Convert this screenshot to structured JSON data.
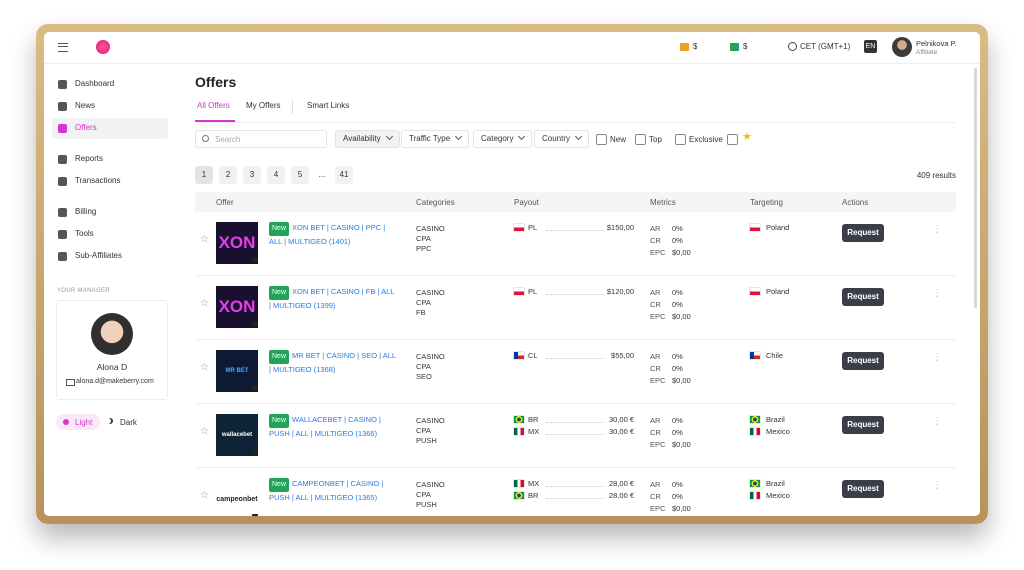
{
  "topbar": {
    "balances": [
      "$",
      "$"
    ],
    "timezone": "CET (GMT+1)",
    "language": "EN",
    "user_name": "Pelnikova P.",
    "user_role": "Affiliate"
  },
  "sidebar": {
    "menu": [
      "Dashboard",
      "News",
      "Offers",
      "Reports",
      "Transactions",
      "Billing",
      "Tools",
      "Sub-Affiliates"
    ],
    "manager_heading": "YOUR MANAGER",
    "manager_name": "Alona D",
    "manager_email": "alona.d@makeberry.com",
    "themes": [
      "Light",
      "Dark"
    ]
  },
  "main": {
    "title": "Offers",
    "tabs": [
      "All Offers",
      "My Offers",
      "Smart Links"
    ],
    "search_placeholder": "Search",
    "filters": [
      "Availability",
      "Traffic Type",
      "Category",
      "Country"
    ],
    "checkboxes": [
      "New",
      "Top",
      "Exclusive"
    ],
    "pages": [
      "1",
      "2",
      "3",
      "4",
      "5",
      "...",
      "41"
    ],
    "results": "409 results",
    "table": {
      "headers": [
        "Offer",
        "Categories",
        "Payout",
        "Metrics",
        "Targeting",
        "Actions"
      ],
      "rows": [
        {
          "logo": "XON",
          "badge": "New",
          "name": "XON BET | CASINO | PPC | ALL | MULTIGEO (1401)",
          "categories": [
            "CASINO",
            "CPA",
            "PPC"
          ],
          "payout": [
            {
              "country": "PL",
              "amount": "$150,00"
            }
          ],
          "metrics": [
            [
              "AR",
              "0%"
            ],
            [
              "CR",
              "0%"
            ],
            [
              "EPC",
              "$0,00"
            ]
          ],
          "targeting": [
            "Poland"
          ],
          "action": "Request"
        },
        {
          "logo": "XON",
          "badge": "New",
          "name": "XON BET | CASINO | FB | ALL | MULTIGEO (1399)",
          "categories": [
            "CASINO",
            "CPA",
            "FB"
          ],
          "payout": [
            {
              "country": "PL",
              "amount": "$120,00"
            }
          ],
          "metrics": [
            [
              "AR",
              "0%"
            ],
            [
              "CR",
              "0%"
            ],
            [
              "EPC",
              "$0,00"
            ]
          ],
          "targeting": [
            "Poland"
          ],
          "action": "Request"
        },
        {
          "logo": "MR BET",
          "badge": "New",
          "name": "MR BET | CASINO | SEO | ALL | MULTIGEO (1368)",
          "categories": [
            "CASINO",
            "CPA",
            "SEO"
          ],
          "payout": [
            {
              "country": "CL",
              "amount": "$55,00"
            }
          ],
          "metrics": [
            [
              "AR",
              "0%"
            ],
            [
              "CR",
              "0%"
            ],
            [
              "EPC",
              "$0,00"
            ]
          ],
          "targeting": [
            "Chile"
          ],
          "action": "Request"
        },
        {
          "logo": "wallacebet",
          "badge": "New",
          "name": "WALLACEBET | CASINO | PUSH | ALL | MULTIGEO (1366)",
          "categories": [
            "CASINO",
            "CPA",
            "PUSH"
          ],
          "payout": [
            {
              "country": "BR",
              "amount": "30,00 €"
            },
            {
              "country": "MX",
              "amount": "30,00 €"
            }
          ],
          "metrics": [
            [
              "AR",
              "0%"
            ],
            [
              "CR",
              "0%"
            ],
            [
              "EPC",
              "$0,00"
            ]
          ],
          "targeting": [
            "Brazil",
            "Mexico"
          ],
          "action": "Request"
        },
        {
          "logo": "campeonbet",
          "badge": "New",
          "name": "CAMPEONBET | CASINO | PUSH | ALL | MULTIGEO (1365)",
          "categories": [
            "CASINO",
            "CPA",
            "PUSH"
          ],
          "payout": [
            {
              "country": "MX",
              "amount": "28,00 €"
            },
            {
              "country": "BR",
              "amount": "28,00 €"
            }
          ],
          "metrics": [
            [
              "AR",
              "0%"
            ],
            [
              "CR",
              "0%"
            ],
            [
              "EPC",
              "$0,00"
            ]
          ],
          "targeting": [
            "Brazil",
            "Mexico"
          ],
          "action": "Request"
        }
      ]
    }
  }
}
